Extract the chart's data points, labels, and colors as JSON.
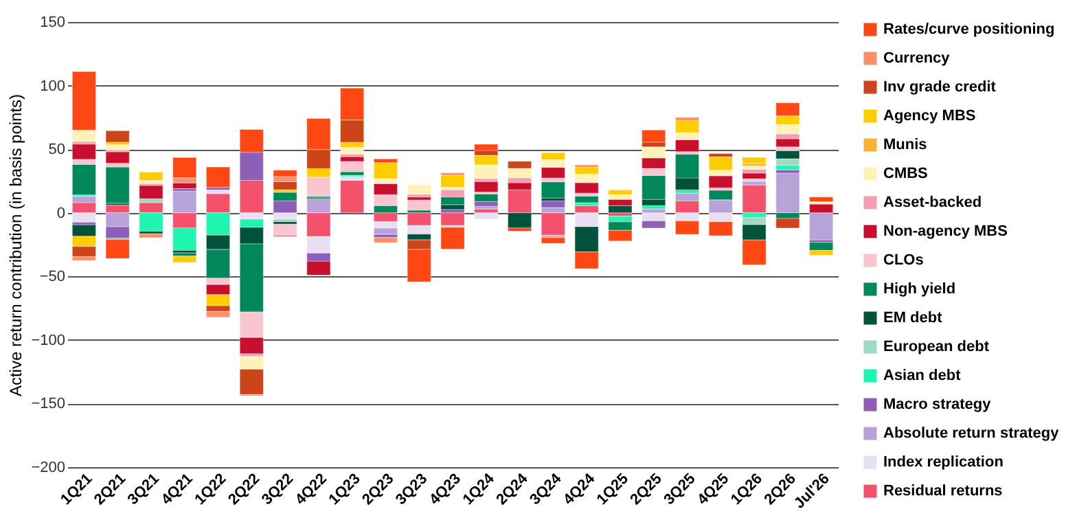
{
  "chart_data": {
    "type": "bar",
    "stacked": true,
    "ylabel": "Active return contribution (in basis points)",
    "categories": [
      "1Q21",
      "2Q21",
      "3Q21",
      "4Q21",
      "1Q22",
      "2Q22",
      "3Q22",
      "4Q22",
      "1Q23",
      "2Q23",
      "3Q23",
      "4Q23",
      "1Q24",
      "2Q24",
      "3Q24",
      "4Q24",
      "1Q25",
      "2Q25",
      "3Q25",
      "4Q25",
      "1Q26",
      "2Q26",
      "Jul'26"
    ],
    "ylim": [
      -200,
      150
    ],
    "yticks": [
      -200,
      -150,
      -100,
      -50,
      0,
      50,
      100,
      150
    ],
    "grid": "y",
    "legend": "right",
    "series": [
      {
        "name": "Residual returns",
        "color": "#f4516c",
        "values": [
          8,
          6,
          8,
          -12,
          15,
          25.5,
          null,
          -18.7,
          25.5,
          -7,
          -10,
          -10,
          3,
          18,
          -17.6,
          5.6,
          -2.6,
          null,
          9.3,
          null,
          21.8,
          null,
          null
        ]
      },
      {
        "name": "Index replication",
        "color": "#e8e0f2",
        "values": [
          -7.5,
          null,
          null,
          null,
          3,
          -5,
          -5,
          -13,
          3,
          -5,
          -6.8,
          null,
          -5,
          null,
          null,
          -10.9,
          null,
          -6.4,
          -6.4,
          -7,
          null,
          null,
          null
        ]
      },
      {
        "name": "Absolute return strategy",
        "color": "#b8a3d9",
        "values": [
          5,
          -11,
          null,
          17,
          null,
          null,
          null,
          11,
          null,
          -5,
          null,
          null,
          2,
          null,
          4.1,
          null,
          null,
          3,
          6.1,
          10.2,
          3,
          31.2,
          -21.4
        ]
      },
      {
        "name": "Macro strategy",
        "color": "#8e5fb7",
        "values": [
          -2,
          -9,
          null,
          2,
          2,
          22,
          9.3,
          -6.4,
          null,
          -2.5,
          null,
          2.6,
          3.8,
          null,
          5.2,
          null,
          null,
          -5.6,
          null,
          null,
          null,
          2.6,
          -1.9
        ]
      },
      {
        "name": "Asian debt",
        "color": "#20f5b0",
        "values": [
          1,
          -1,
          -14.6,
          -17.6,
          -17.6,
          -6.5,
          null,
          null,
          1,
          null,
          null,
          null,
          null,
          null,
          null,
          2.3,
          -4.5,
          2.6,
          2.6,
          null,
          -3.8,
          3.7,
          null
        ]
      },
      {
        "name": "European debt",
        "color": "#a0d9c3",
        "values": [
          null,
          null,
          3,
          null,
          null,
          null,
          -2,
          null,
          null,
          null,
          null,
          null,
          null,
          null,
          null,
          null,
          null,
          null,
          null,
          null,
          -5.6,
          5,
          null
        ]
      },
      {
        "name": "EM debt",
        "color": "#00523a",
        "values": [
          -9,
          1.5,
          -2,
          -2,
          -11.3,
          -13,
          -2,
          1,
          null,
          null,
          -4.5,
          3.8,
          null,
          -12,
          2.3,
          -19.8,
          5.6,
          4.9,
          9.4,
          null,
          -12,
          6.3,
          null
        ]
      },
      {
        "name": "High yield",
        "color": "#00875a",
        "values": [
          24,
          28.5,
          null,
          -2.5,
          -22.5,
          -53.5,
          6.8,
          1,
          2.7,
          5.6,
          2,
          6,
          6,
          null,
          12.8,
          5.3,
          -6.8,
          18.8,
          18.7,
          7.5,
          null,
          -4.5,
          -6.3
        ]
      },
      {
        "name": "CLOs",
        "color": "#f9c6d0",
        "values": [
          4,
          3,
          null,
          null,
          -5,
          -20,
          -8,
          15,
          8.2,
          8.7,
          8,
          -1.5,
          1.5,
          null,
          3,
          2.2,
          null,
          5.6,
          1.9,
          1.9,
          1.9,
          3,
          null
        ]
      },
      {
        "name": "Non-agency MBS",
        "color": "#c8102e",
        "values": [
          12,
          9,
          10.5,
          4.5,
          -8,
          -13,
          null,
          -11,
          3.7,
          8.6,
          2.5,
          null,
          8.3,
          5.6,
          8.3,
          8.3,
          4.9,
          8.2,
          9.4,
          9.4,
          4.5,
          6.4,
          6.8
        ]
      },
      {
        "name": "Asset-backed",
        "color": "#f59db3",
        "values": [
          2,
          1.5,
          1.5,
          null,
          null,
          -2,
          -2,
          null,
          2,
          null,
          2,
          5.7,
          2.3,
          3.8,
          -2,
          null,
          null,
          null,
          null,
          null,
          3,
          3.8,
          null
        ]
      },
      {
        "name": "CMBS",
        "color": "#fff2b8",
        "values": [
          9,
          4,
          2.5,
          null,
          null,
          -10,
          null,
          null,
          5.3,
          3.8,
          7.5,
          2,
          10.8,
          7.5,
          6,
          6.8,
          3.8,
          8.7,
          5.6,
          4.5,
          2.6,
          7.5,
          1.9
        ]
      },
      {
        "name": "Munis",
        "color": "#f9b233",
        "values": [
          null,
          null,
          null,
          null,
          null,
          null,
          null,
          null,
          null,
          null,
          null,
          null,
          null,
          null,
          null,
          null,
          null,
          null,
          null,
          null,
          1.9,
          null,
          null
        ]
      },
      {
        "name": "Agency MBS",
        "color": "#ffce00",
        "values": [
          -8,
          2,
          6.5,
          -5,
          -8.7,
          null,
          2,
          6.7,
          4,
          12.7,
          null,
          9.3,
          7.5,
          null,
          5.6,
          5.3,
          3.7,
          null,
          9.4,
          10.5,
          4.9,
          6.7,
          -3.8
        ]
      },
      {
        "name": "Inv grade credit",
        "color": "#cc4418",
        "values": [
          -8,
          9,
          null,
          null,
          -4.5,
          -20,
          6.4,
          15,
          17.6,
          null,
          -7.5,
          null,
          3.8,
          5.6,
          null,
          null,
          null,
          3.7,
          null,
          2.6,
          null,
          -7.5,
          null
        ]
      },
      {
        "name": "Currency",
        "color": "#ff8f6b",
        "values": [
          -3,
          null,
          -3,
          4,
          -4.5,
          -1,
          4,
          null,
          null,
          -4,
          null,
          2,
          null,
          null,
          null,
          1.9,
          null,
          null,
          2.6,
          null,
          null,
          null,
          null
        ]
      },
      {
        "name": "Rates/curve positioning",
        "color": "#ff4713",
        "values": [
          46,
          -15,
          null,
          16,
          16,
          18,
          5,
          24.4,
          25,
          3,
          -25.5,
          -17,
          4.9,
          -2.5,
          -4.5,
          -13.2,
          -8.3,
          9.5,
          -10.5,
          -11,
          -19.5,
          10.2,
          3.7
        ]
      }
    ]
  }
}
